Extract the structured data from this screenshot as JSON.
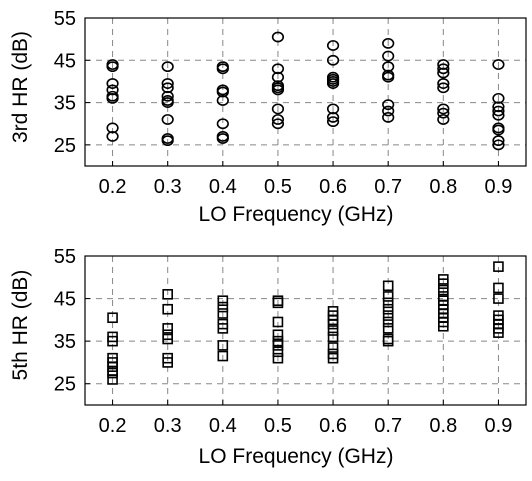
{
  "chart_data": [
    {
      "type": "scatter",
      "marker": "circle",
      "xlabel": "LO Frequency (GHz)",
      "ylabel": "3rd HR (dB)",
      "xticks": [
        "0.2",
        "0.3",
        "0.4",
        "0.5",
        "0.6",
        "0.7",
        "0.8",
        "0.9"
      ],
      "yticks": [
        "55",
        "45",
        "35",
        "25"
      ],
      "ylim": [
        20,
        55
      ],
      "xlim": [
        0.15,
        0.95
      ],
      "grid": true,
      "x": [
        0.2,
        0.3,
        0.4,
        0.5,
        0.6,
        0.7,
        0.8,
        0.9
      ],
      "values": [
        [
          44,
          43.5,
          39.5,
          38,
          36.5,
          36,
          29,
          27
        ],
        [
          43.5,
          39.5,
          38.5,
          36.5,
          35.5,
          35,
          31,
          26.5,
          26
        ],
        [
          43.5,
          43,
          38,
          37.5,
          35.5,
          30,
          27,
          26.5
        ],
        [
          50.5,
          43,
          41,
          39,
          38.5,
          38,
          33.5,
          31,
          30
        ],
        [
          48.5,
          45,
          41,
          40.5,
          40,
          39.5,
          33.5,
          31.5,
          30.5
        ],
        [
          49,
          46,
          43.5,
          41.5,
          41,
          34.5,
          33,
          31.5
        ],
        [
          44,
          43,
          42,
          39.5,
          38.5,
          33.5,
          32.5,
          31
        ],
        [
          44,
          36,
          34,
          33,
          32,
          29,
          28.5,
          26,
          25
        ]
      ]
    },
    {
      "type": "scatter",
      "marker": "square",
      "xlabel": "LO Frequency (GHz)",
      "ylabel": "5th HR (dB)",
      "xticks": [
        "0.2",
        "0.3",
        "0.4",
        "0.5",
        "0.6",
        "0.7",
        "0.8",
        "0.9"
      ],
      "yticks": [
        "55",
        "45",
        "35",
        "25"
      ],
      "ylim": [
        20,
        55
      ],
      "xlim": [
        0.15,
        0.95
      ],
      "grid": true,
      "x": [
        0.2,
        0.3,
        0.4,
        0.5,
        0.6,
        0.7,
        0.8,
        0.9
      ],
      "values": [
        [
          40.5,
          36,
          35,
          31,
          30,
          29,
          28,
          27.5,
          26
        ],
        [
          46,
          42.5,
          38,
          36.5,
          35.5,
          31,
          30
        ],
        [
          44.5,
          43,
          41.5,
          39,
          38,
          34,
          31.5
        ],
        [
          44.5,
          44,
          39.5,
          36.5,
          35,
          34,
          32.5,
          31
        ],
        [
          42,
          41,
          40,
          39,
          37.5,
          36,
          33.5,
          32,
          31
        ],
        [
          48,
          45.5,
          44,
          42.5,
          41,
          39.5,
          38,
          35.5,
          35
        ],
        [
          49.5,
          48.5,
          47,
          45.5,
          44.5,
          43.5,
          42.5,
          41.5,
          40.5,
          39.5,
          38.5
        ],
        [
          52.5,
          47.5,
          45,
          41,
          40,
          39,
          38,
          37
        ]
      ]
    }
  ]
}
